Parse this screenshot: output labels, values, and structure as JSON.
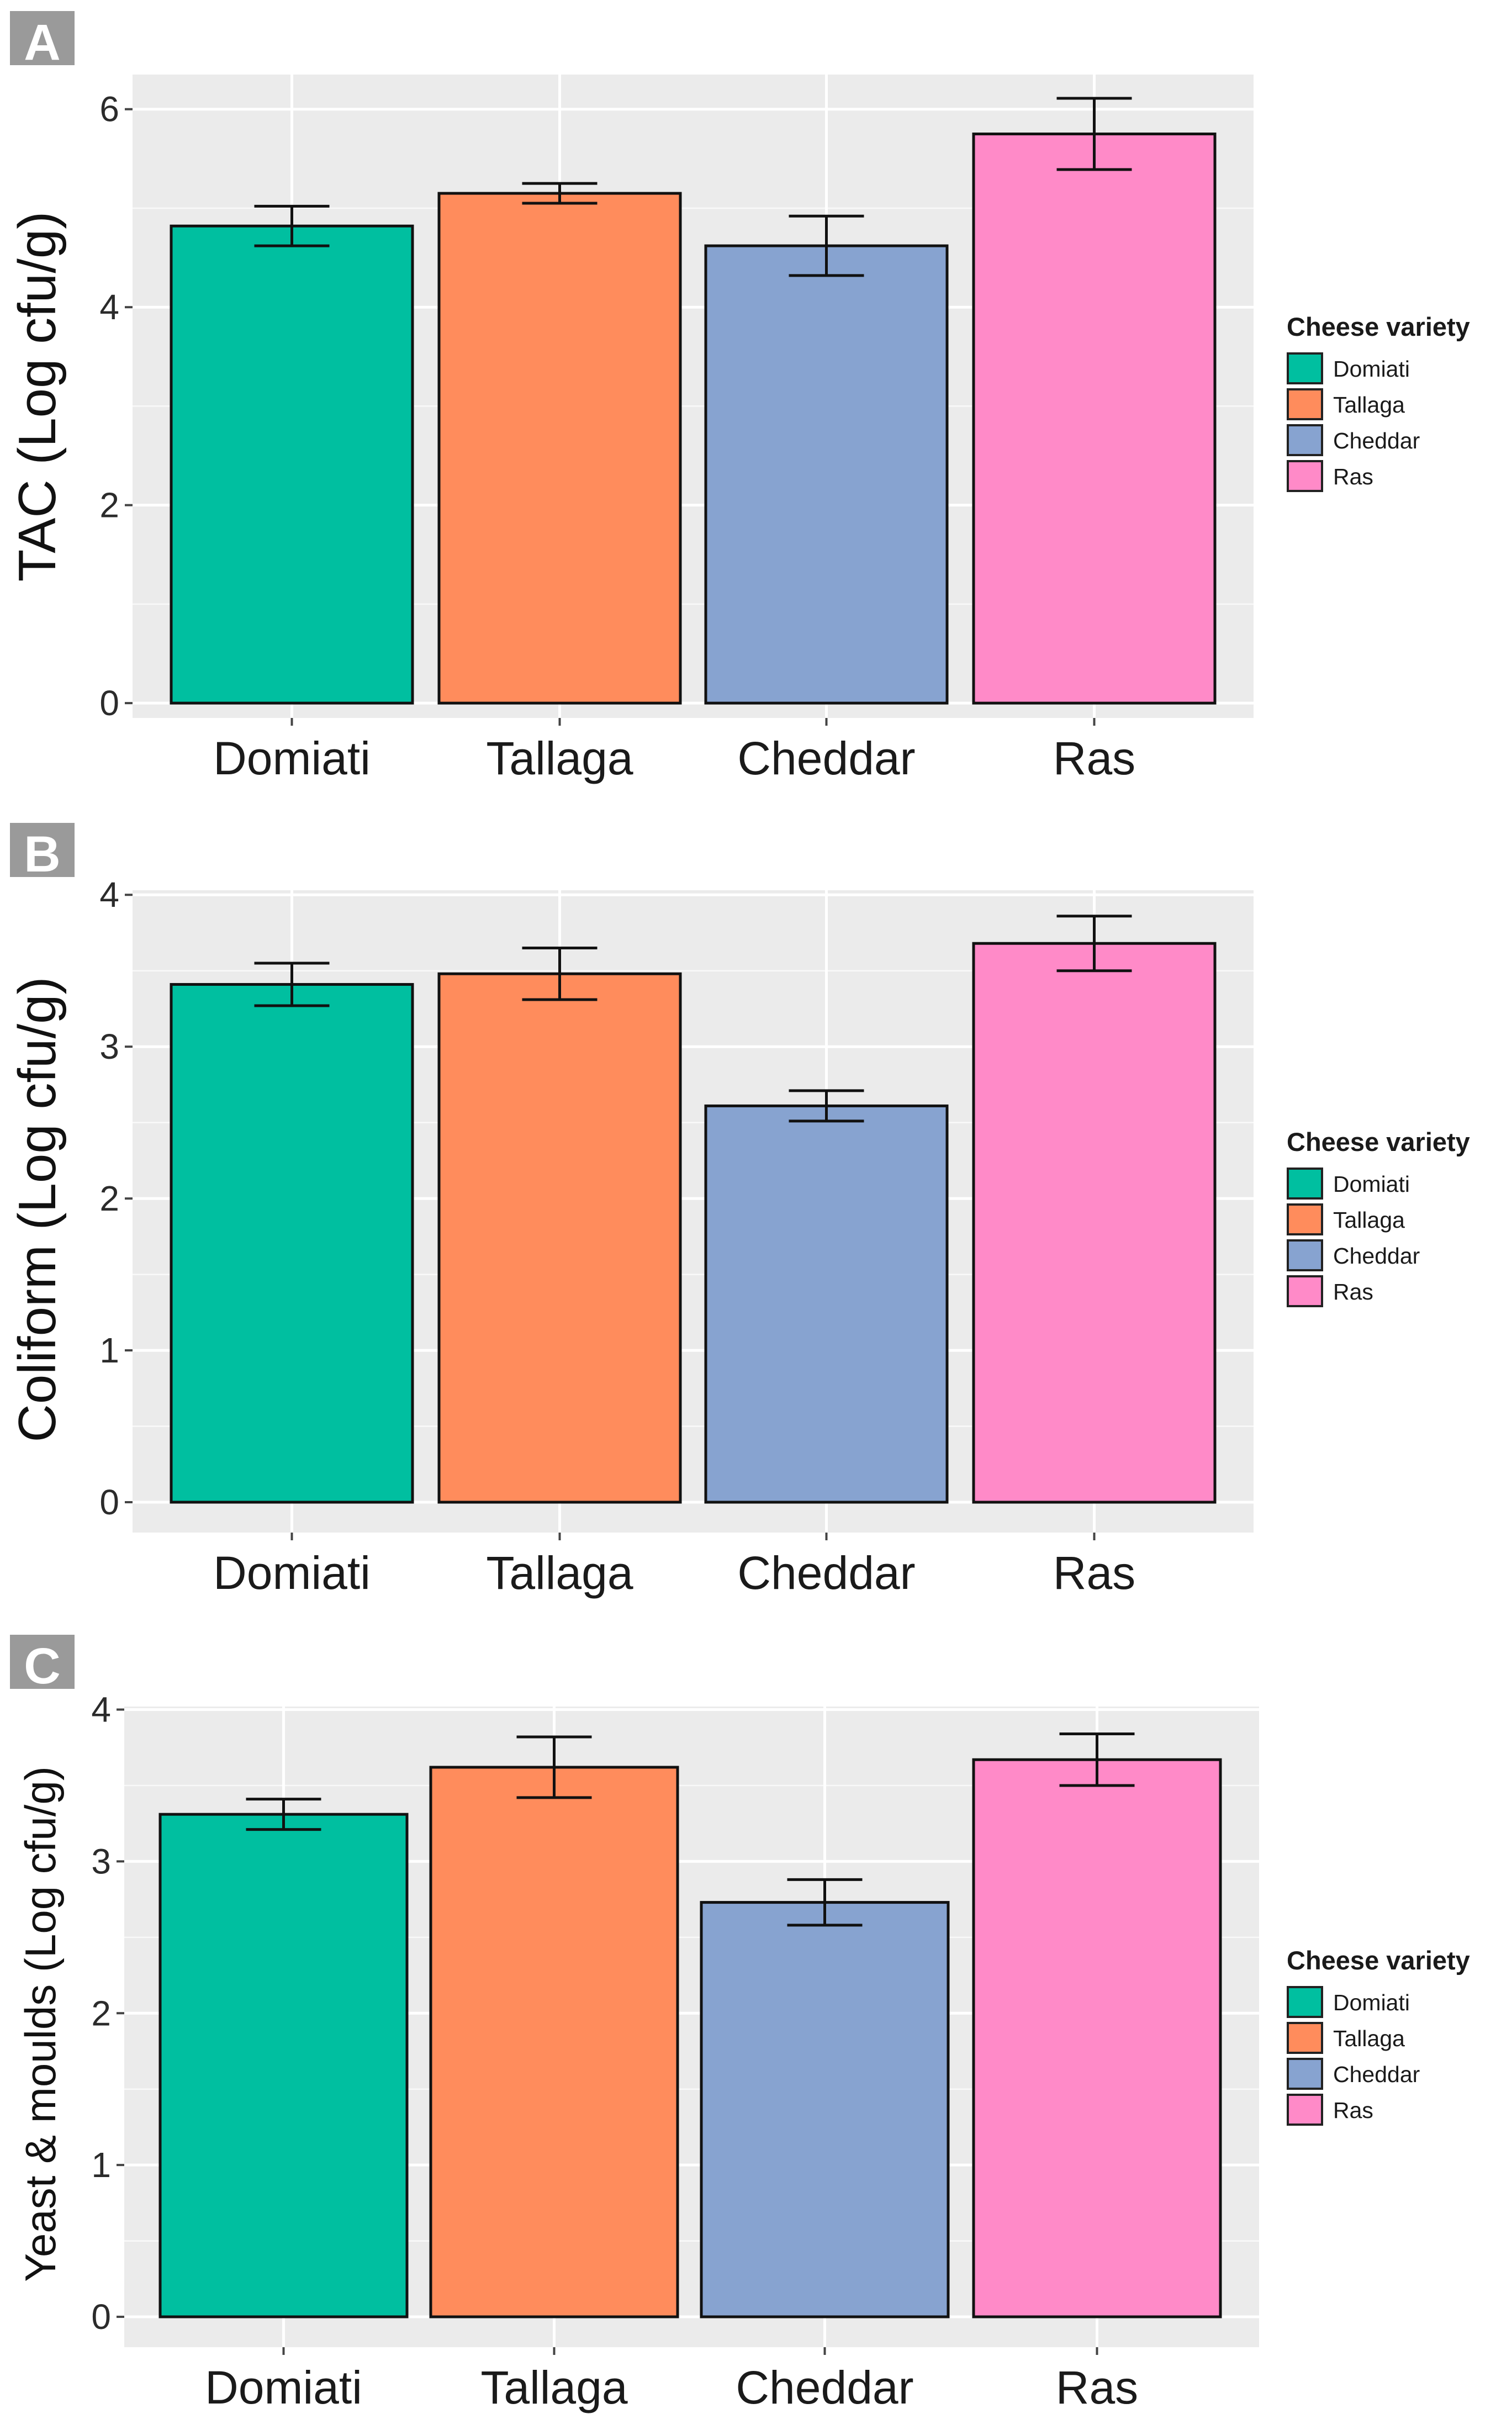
{
  "legend_title": "Cheese variety",
  "colors": {
    "Domiati": "#00BFA0",
    "Tallaga": "#FF8C5C",
    "Cheddar": "#87A3D0",
    "Ras": "#FF8AC8",
    "panel_bg": "#EBEBEB",
    "grid": "#FFFFFF",
    "letter_box": "#9A9A9A"
  },
  "chart_data": [
    {
      "type": "bar",
      "panel": "A",
      "categories": [
        "Domiati",
        "Tallaga",
        "Cheddar",
        "Ras"
      ],
      "values": [
        4.82,
        5.15,
        4.62,
        5.75
      ],
      "errors": [
        0.2,
        0.1,
        0.3,
        0.36
      ],
      "ylabel": "TAC (Log cfu/g)",
      "xlabel": "",
      "ylim": [
        -0.15,
        6.35
      ],
      "yticks": [
        0,
        2,
        4,
        6
      ],
      "legend": [
        "Domiati",
        "Tallaga",
        "Cheddar",
        "Ras"
      ],
      "legend_position": "right",
      "grid": true
    },
    {
      "type": "bar",
      "panel": "B",
      "categories": [
        "Domiati",
        "Tallaga",
        "Cheddar",
        "Ras"
      ],
      "values": [
        3.41,
        3.48,
        2.61,
        3.68
      ],
      "errors": [
        0.14,
        0.17,
        0.1,
        0.18
      ],
      "ylabel": "Coliform (Log cfu/g)",
      "xlabel": "",
      "ylim": [
        -0.2,
        4.03
      ],
      "yticks": [
        0,
        1,
        2,
        3,
        4
      ],
      "legend": [
        "Domiati",
        "Tallaga",
        "Cheddar",
        "Ras"
      ],
      "legend_position": "right",
      "grid": true
    },
    {
      "type": "bar",
      "panel": "C",
      "categories": [
        "Domiati",
        "Tallaga",
        "Cheddar",
        "Ras"
      ],
      "values": [
        3.31,
        3.62,
        2.73,
        3.67
      ],
      "errors": [
        0.1,
        0.2,
        0.15,
        0.17
      ],
      "ylabel": "Yeast & moulds (Log cfu/g)",
      "xlabel": "",
      "ylim": [
        -0.2,
        4.02
      ],
      "yticks": [
        0,
        1,
        2,
        3,
        4
      ],
      "legend": [
        "Domiati",
        "Tallaga",
        "Cheddar",
        "Ras"
      ],
      "legend_position": "right",
      "grid": true
    }
  ]
}
